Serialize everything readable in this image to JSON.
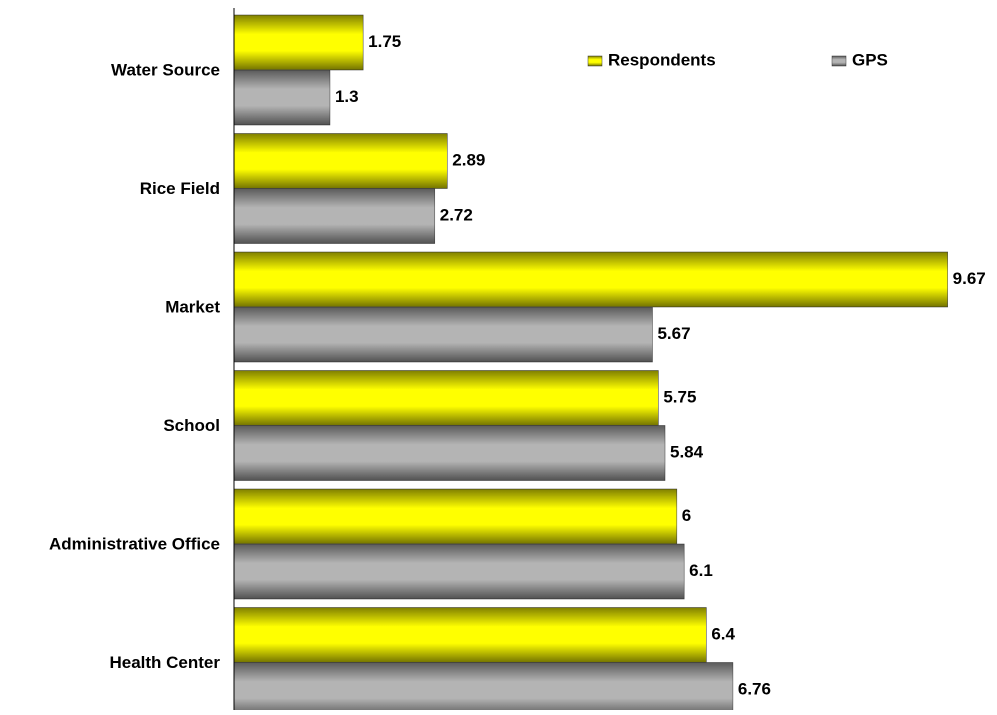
{
  "chart_data": {
    "type": "hbar",
    "categories": [
      "Water Source",
      "Rice Field",
      "Market",
      "School",
      "Administrative Office",
      "Health Center"
    ],
    "series": [
      {
        "name": "Respondents",
        "color": "#ffff00",
        "values": [
          1.75,
          2.89,
          9.67,
          5.75,
          6,
          6.4
        ]
      },
      {
        "name": "GPS",
        "color": "#b4b4b4",
        "values": [
          1.3,
          2.72,
          5.67,
          5.84,
          6.1,
          6.76
        ]
      }
    ],
    "xlim": [
      0,
      10
    ],
    "legend": "top-right"
  }
}
